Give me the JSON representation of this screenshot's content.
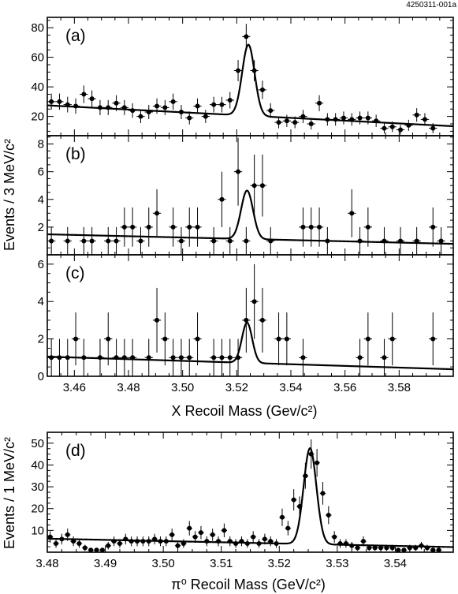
{
  "figure_id": "4250311-001a",
  "chart_data": [
    {
      "panel": "a",
      "type": "scatter",
      "label": "(a)",
      "title": "",
      "xlabel": "",
      "ylabel": "Events / 3 MeV/c²",
      "xlim": [
        3.45,
        3.6
      ],
      "ylim": [
        7,
        87
      ],
      "xticks": [
        3.46,
        3.48,
        3.5,
        3.52,
        3.54,
        3.56,
        3.58
      ],
      "yticks": [
        20,
        40,
        60,
        80
      ],
      "y_tick_labels_shown": true,
      "points": [
        [
          3.4515,
          30
        ],
        [
          3.4545,
          30
        ],
        [
          3.4575,
          28
        ],
        [
          3.4605,
          27
        ],
        [
          3.4635,
          35
        ],
        [
          3.4665,
          32
        ],
        [
          3.4695,
          26
        ],
        [
          3.4725,
          26
        ],
        [
          3.4755,
          29
        ],
        [
          3.4785,
          26
        ],
        [
          3.4815,
          24
        ],
        [
          3.4845,
          20
        ],
        [
          3.4875,
          23
        ],
        [
          3.4905,
          27
        ],
        [
          3.4935,
          26
        ],
        [
          3.4965,
          30
        ],
        [
          3.4995,
          23
        ],
        [
          3.5025,
          19
        ],
        [
          3.5055,
          27
        ],
        [
          3.5085,
          20
        ],
        [
          3.5115,
          28
        ],
        [
          3.5145,
          28
        ],
        [
          3.5175,
          31
        ],
        [
          3.5205,
          51
        ],
        [
          3.5235,
          74
        ],
        [
          3.5265,
          51
        ],
        [
          3.5295,
          38
        ],
        [
          3.5325,
          24
        ],
        [
          3.5355,
          16
        ],
        [
          3.5385,
          17
        ],
        [
          3.5415,
          16
        ],
        [
          3.5445,
          20
        ],
        [
          3.5475,
          15
        ],
        [
          3.5505,
          29
        ],
        [
          3.5535,
          18
        ],
        [
          3.5565,
          18
        ],
        [
          3.5595,
          19
        ],
        [
          3.5625,
          18
        ],
        [
          3.5655,
          19
        ],
        [
          3.5685,
          19
        ],
        [
          3.5715,
          17
        ],
        [
          3.5745,
          12
        ],
        [
          3.5775,
          13
        ],
        [
          3.5805,
          11
        ],
        [
          3.5835,
          14
        ],
        [
          3.5865,
          21
        ],
        [
          3.5895,
          18
        ],
        [
          3.5925,
          12
        ]
      ],
      "fit": {
        "bg_start": 27.5,
        "bg_slope_per_gev": -94,
        "peak_amp": 48,
        "mean": 3.5243,
        "sigma": 0.0023
      }
    },
    {
      "panel": "b",
      "type": "scatter",
      "label": "(b)",
      "title": "",
      "xlabel": "",
      "ylabel": "",
      "xlim": [
        3.45,
        3.6
      ],
      "ylim": [
        0,
        8.6
      ],
      "xticks": [
        3.46,
        3.48,
        3.5,
        3.52,
        3.54,
        3.56,
        3.58
      ],
      "yticks": [
        2,
        4,
        6,
        8
      ],
      "y_tick_labels_shown": true,
      "points": [
        [
          3.4515,
          1
        ],
        [
          3.4575,
          1
        ],
        [
          3.4635,
          1
        ],
        [
          3.4665,
          1
        ],
        [
          3.4725,
          1
        ],
        [
          3.4755,
          1
        ],
        [
          3.4785,
          2
        ],
        [
          3.4815,
          2
        ],
        [
          3.4845,
          1
        ],
        [
          3.4875,
          2
        ],
        [
          3.4905,
          3
        ],
        [
          3.4965,
          2
        ],
        [
          3.4995,
          1
        ],
        [
          3.5025,
          2
        ],
        [
          3.5055,
          2
        ],
        [
          3.5115,
          1
        ],
        [
          3.5145,
          4
        ],
        [
          3.5175,
          1
        ],
        [
          3.5205,
          6
        ],
        [
          3.5235,
          1
        ],
        [
          3.5265,
          5
        ],
        [
          3.5295,
          5
        ],
        [
          3.5325,
          1
        ],
        [
          3.5445,
          2
        ],
        [
          3.5475,
          2
        ],
        [
          3.5505,
          2
        ],
        [
          3.5535,
          1
        ],
        [
          3.5625,
          3
        ],
        [
          3.5655,
          1
        ],
        [
          3.5685,
          2
        ],
        [
          3.5745,
          1
        ],
        [
          3.5805,
          1
        ],
        [
          3.5865,
          1
        ],
        [
          3.5925,
          2
        ],
        [
          3.5955,
          1
        ]
      ],
      "fit": {
        "bg_start": 1.48,
        "bg_slope_per_gev": -4.6,
        "peak_amp": 3.5,
        "mean": 3.5238,
        "sigma": 0.0022
      }
    },
    {
      "panel": "c",
      "type": "scatter",
      "label": "(c)",
      "title": "",
      "xlabel": "X Recoil Mass (Gev/c²)",
      "ylabel": "",
      "xlim": [
        3.45,
        3.6
      ],
      "ylim": [
        0,
        6.5
      ],
      "xticks": [
        3.46,
        3.48,
        3.5,
        3.52,
        3.54,
        3.56,
        3.58
      ],
      "x_tick_labels": [
        "3.46",
        "3.48",
        "3.50",
        "3.52",
        "3.54",
        "3.56",
        "3.58"
      ],
      "yticks": [
        0,
        2,
        4,
        6
      ],
      "y_tick_labels_shown": true,
      "points": [
        [
          3.4515,
          1
        ],
        [
          3.4545,
          1
        ],
        [
          3.4575,
          1
        ],
        [
          3.4605,
          2
        ],
        [
          3.4635,
          1
        ],
        [
          3.4695,
          1
        ],
        [
          3.4725,
          2
        ],
        [
          3.4755,
          1
        ],
        [
          3.4785,
          1
        ],
        [
          3.4815,
          1
        ],
        [
          3.4875,
          1
        ],
        [
          3.4905,
          3
        ],
        [
          3.4935,
          2
        ],
        [
          3.4965,
          1
        ],
        [
          3.4995,
          1
        ],
        [
          3.5025,
          1
        ],
        [
          3.5055,
          2
        ],
        [
          3.5115,
          1
        ],
        [
          3.5145,
          1
        ],
        [
          3.5175,
          1
        ],
        [
          3.5205,
          1
        ],
        [
          3.5235,
          3
        ],
        [
          3.5265,
          4
        ],
        [
          3.5295,
          3
        ],
        [
          3.5355,
          2
        ],
        [
          3.5385,
          2
        ],
        [
          3.5445,
          1
        ],
        [
          3.5655,
          1
        ],
        [
          3.5685,
          2
        ],
        [
          3.5745,
          1
        ],
        [
          3.5775,
          2
        ],
        [
          3.5925,
          2
        ]
      ],
      "fit": {
        "bg_start": 1.05,
        "bg_slope_per_gev": -4.5,
        "peak_amp": 2.15,
        "mean": 3.5238,
        "sigma": 0.0019
      }
    },
    {
      "panel": "d",
      "type": "scatter",
      "label": "(d)",
      "title": "",
      "xlabel": "π⁰ Recoil Mass (GeV/c²)",
      "ylabel": "Events / 1 MeV/c²",
      "xlim": [
        3.48,
        3.55
      ],
      "ylim": [
        0,
        55
      ],
      "xticks": [
        3.48,
        3.49,
        3.5,
        3.51,
        3.52,
        3.53,
        3.54
      ],
      "x_tick_labels": [
        "3.48",
        "3.49",
        "3.50",
        "3.51",
        "3.52",
        "3.53",
        "3.54"
      ],
      "yticks": [
        10,
        20,
        30,
        40,
        50
      ],
      "y_tick_labels_shown": true,
      "points": [
        [
          3.4805,
          7
        ],
        [
          3.4815,
          4
        ],
        [
          3.4825,
          6
        ],
        [
          3.4835,
          8
        ],
        [
          3.4845,
          5
        ],
        [
          3.4855,
          4
        ],
        [
          3.4865,
          2
        ],
        [
          3.4875,
          1
        ],
        [
          3.4885,
          1
        ],
        [
          3.4895,
          1
        ],
        [
          3.4905,
          3
        ],
        [
          3.4915,
          5
        ],
        [
          3.4925,
          4
        ],
        [
          3.4935,
          6
        ],
        [
          3.4945,
          5
        ],
        [
          3.4955,
          5
        ],
        [
          3.4965,
          5
        ],
        [
          3.4975,
          5
        ],
        [
          3.4985,
          6
        ],
        [
          3.4995,
          5
        ],
        [
          3.5005,
          5
        ],
        [
          3.5015,
          8
        ],
        [
          3.5025,
          3
        ],
        [
          3.5035,
          4
        ],
        [
          3.5045,
          11
        ],
        [
          3.5055,
          7
        ],
        [
          3.5065,
          9
        ],
        [
          3.5075,
          5
        ],
        [
          3.5085,
          8
        ],
        [
          3.5095,
          5
        ],
        [
          3.5105,
          10
        ],
        [
          3.5115,
          5
        ],
        [
          3.5125,
          4
        ],
        [
          3.5135,
          5
        ],
        [
          3.5145,
          4
        ],
        [
          3.5155,
          7
        ],
        [
          3.5165,
          4
        ],
        [
          3.5175,
          6
        ],
        [
          3.5185,
          5
        ],
        [
          3.5195,
          4
        ],
        [
          3.5205,
          16
        ],
        [
          3.5215,
          11
        ],
        [
          3.5225,
          24
        ],
        [
          3.5235,
          21
        ],
        [
          3.5245,
          35
        ],
        [
          3.5255,
          45
        ],
        [
          3.5265,
          41
        ],
        [
          3.5275,
          27
        ],
        [
          3.5285,
          17
        ],
        [
          3.5295,
          7
        ],
        [
          3.5305,
          4
        ],
        [
          3.5315,
          4
        ],
        [
          3.5325,
          3
        ],
        [
          3.5335,
          2
        ],
        [
          3.5345,
          5
        ],
        [
          3.5355,
          2
        ],
        [
          3.5365,
          2
        ],
        [
          3.5375,
          2
        ],
        [
          3.5385,
          2
        ],
        [
          3.5395,
          2
        ],
        [
          3.5405,
          1
        ],
        [
          3.5415,
          1
        ],
        [
          3.5425,
          2
        ],
        [
          3.5435,
          2
        ],
        [
          3.5445,
          3
        ],
        [
          3.5455,
          2
        ],
        [
          3.5465,
          1
        ],
        [
          3.5475,
          1
        ]
      ],
      "fit": {
        "bg_start": 6.2,
        "bg_slope_per_gev": -55,
        "peak_amp": 44,
        "mean": 3.5253,
        "sigma": 0.0011
      }
    }
  ]
}
